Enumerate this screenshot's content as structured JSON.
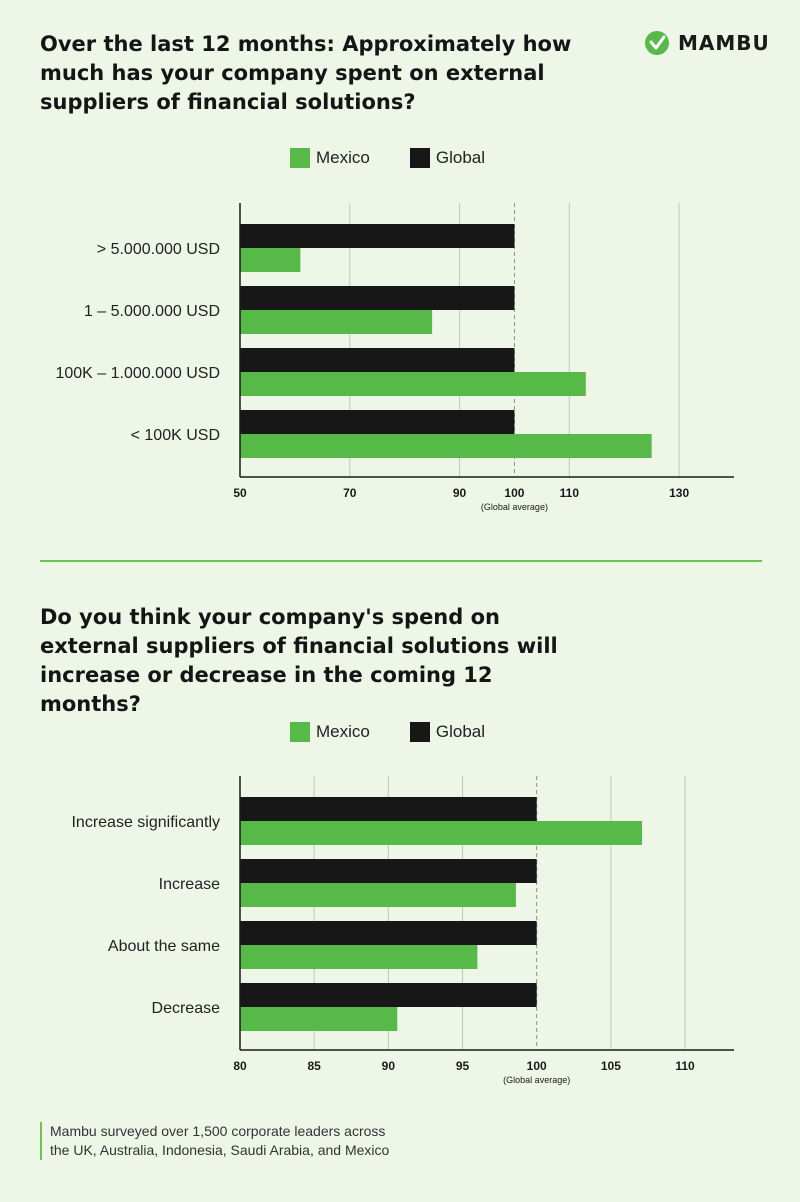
{
  "brand": {
    "name": "MAMBU",
    "colors": {
      "mexico": "#56b948",
      "global": "#171717",
      "background": "#eef6e8",
      "accent": "#6fc24f"
    }
  },
  "charts": [
    {
      "id": "chart1",
      "question": "Over the last 12 months: Approximately how much has your company spent on external suppliers of financial solutions?",
      "legend": [
        {
          "label": "Mexico",
          "color": "#56b948"
        },
        {
          "label": "Global",
          "color": "#171717"
        }
      ]
    },
    {
      "id": "chart2",
      "question": "Do you think your company's spend on external suppliers of financial solutions will increase or decrease in the coming 12 months?",
      "legend": [
        {
          "label": "Mexico",
          "color": "#56b948"
        },
        {
          "label": "Global",
          "color": "#171717"
        }
      ]
    }
  ],
  "chart_data": [
    {
      "type": "bar",
      "orientation": "horizontal",
      "title": "Over the last 12 months: Approximately how much has your company spent on external suppliers of financial solutions?",
      "categories": [
        "> 5.000.000 USD",
        "1 – 5.000.000 USD",
        "100K – 1.000.000 USD",
        "< 100K USD"
      ],
      "series": [
        {
          "name": "Global",
          "values": [
            100,
            100,
            100,
            100
          ]
        },
        {
          "name": "Mexico",
          "values": [
            61,
            85,
            113,
            125
          ]
        }
      ],
      "xlim": [
        50,
        140
      ],
      "xticks": [
        50,
        70,
        90,
        100,
        110,
        130
      ],
      "reference_value": 100,
      "reference_label": "(Global average)",
      "grid": true,
      "legend_position": "top"
    },
    {
      "type": "bar",
      "orientation": "horizontal",
      "title": "Do you think your company's spend on external suppliers of financial solutions will increase or decrease in the coming 12 months?",
      "categories": [
        "Increase significantly",
        "Increase",
        "About the same",
        "Decrease"
      ],
      "series": [
        {
          "name": "Global",
          "values": [
            100,
            100,
            100,
            100
          ]
        },
        {
          "name": "Mexico",
          "values": [
            107.1,
            98.6,
            96,
            90.6
          ]
        }
      ],
      "xlim": [
        80,
        113.3
      ],
      "xticks": [
        80,
        85,
        90,
        95,
        100,
        105,
        110
      ],
      "reference_value": 100,
      "reference_label": "(Global average)",
      "grid": true,
      "legend_position": "top"
    }
  ],
  "footnote": {
    "line1": "Mambu surveyed over 1,500 corporate leaders across",
    "line2": "the UK, Australia, Indonesia, Saudi Arabia, and Mexico"
  }
}
